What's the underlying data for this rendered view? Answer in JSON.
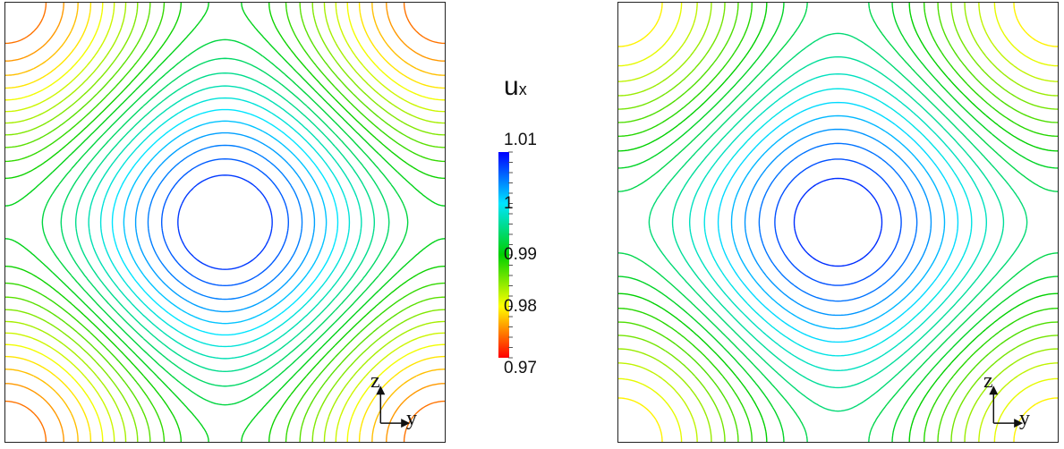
{
  "chart_data": [
    {
      "type": "contour",
      "variable": "u_x",
      "axes": {
        "horizontal": "y",
        "vertical": "z"
      },
      "center_value": 0.973,
      "levels_from": 0.973,
      "levels_to": 1.008,
      "level_step": 0.0015
    },
    {
      "type": "contour",
      "variable": "u_x",
      "axes": {
        "horizontal": "y",
        "vertical": "z"
      },
      "center_value": 0.978,
      "levels_from": 0.978,
      "levels_to": 1.008,
      "level_step": 0.0015
    }
  ],
  "colorbar": {
    "title_main": "u",
    "title_sub": "x",
    "min": 0.97,
    "max": 1.01,
    "tick_labels": [
      "1.01",
      "1",
      "0.99",
      "0.98",
      "0.97"
    ],
    "tick_values": [
      1.01,
      1.0,
      0.99,
      0.98,
      0.97
    ],
    "colors": [
      "#0000ff",
      "#00e5ff",
      "#00d000",
      "#ffff00",
      "#ff0000"
    ]
  },
  "axis_indicator": {
    "vertical": "z",
    "horizontal": "y"
  }
}
